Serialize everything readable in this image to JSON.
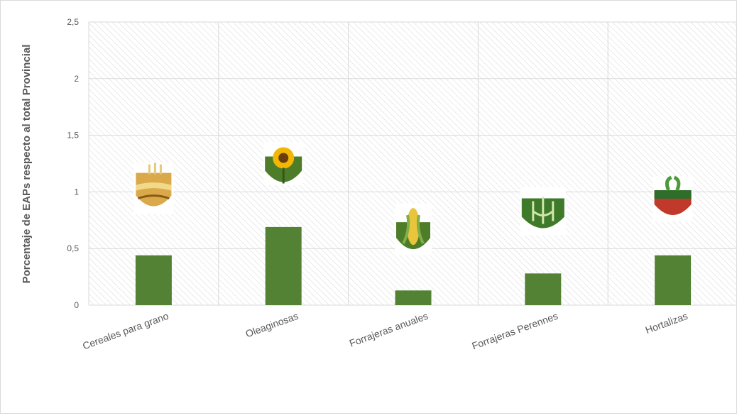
{
  "chart_data": {
    "type": "bar",
    "title": "",
    "xlabel": "",
    "ylabel": "Porcentaje de EAPs respecto al total Provincial",
    "categories": [
      "Cereales para grano",
      "Oleaginosas",
      "Forrajeras anuales",
      "Forrajeras Perennes",
      "Hortalizas"
    ],
    "values": [
      0.44,
      0.69,
      0.13,
      0.28,
      0.44
    ],
    "ylim": [
      0,
      2.5
    ],
    "yticks": [
      "0",
      "0,5",
      "1",
      "1,5",
      "2",
      "2,5"
    ],
    "grid": true,
    "legend": "none",
    "bar_color": "#548235",
    "icons": [
      "wheat-icon",
      "sunflower-icon",
      "corn-icon",
      "forage-plant-icon",
      "radish-icon"
    ]
  }
}
